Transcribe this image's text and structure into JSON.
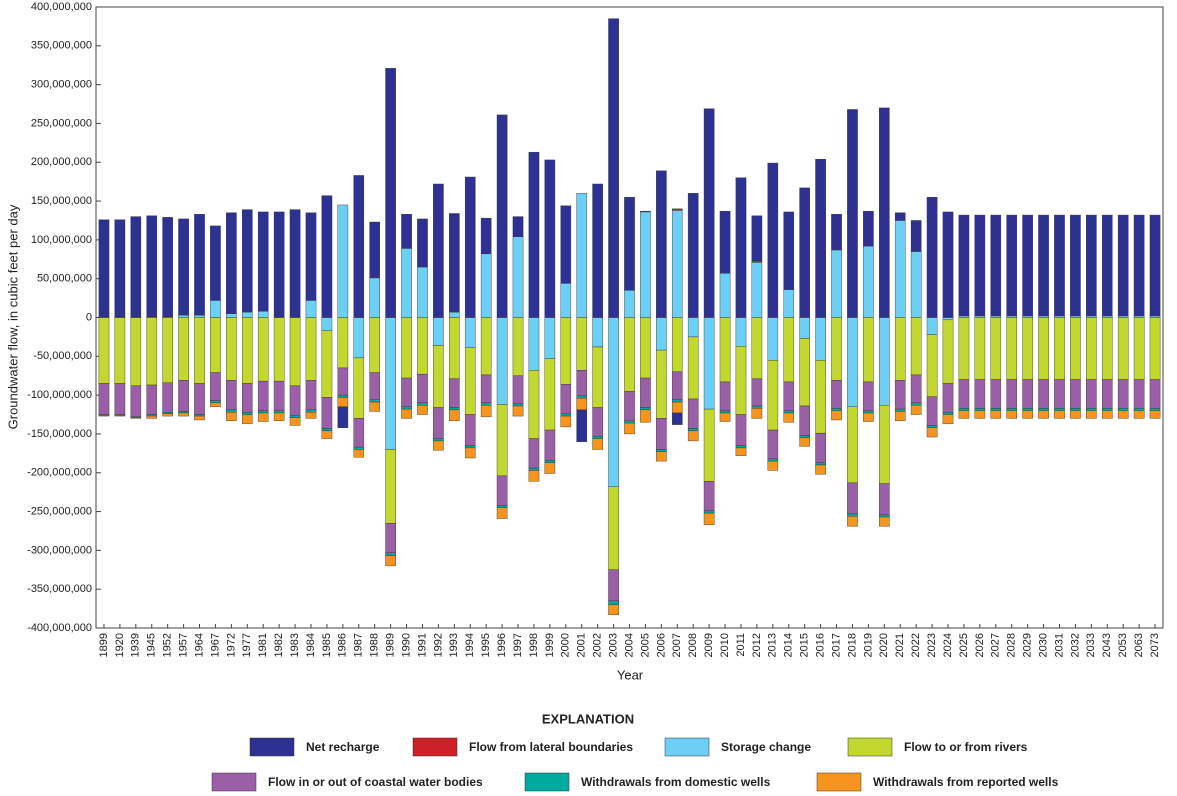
{
  "chart_data": {
    "type": "bar",
    "stacked": true,
    "x_label": "Year",
    "y_label": "Groundwater flow, in cubic feet per day",
    "legend_title": "EXPLANATION",
    "categories": [
      "1899",
      "1920",
      "1939",
      "1945",
      "1952",
      "1957",
      "1964",
      "1967",
      "1972",
      "1977",
      "1981",
      "1982",
      "1983",
      "1984",
      "1985",
      "1986",
      "1987",
      "1988",
      "1989",
      "1990",
      "1991",
      "1992",
      "1993",
      "1994",
      "1995",
      "1996",
      "1997",
      "1998",
      "1999",
      "2000",
      "2001",
      "2002",
      "2003",
      "2004",
      "2005",
      "2006",
      "2007",
      "2008",
      "2009",
      "2010",
      "2011",
      "2012",
      "2013",
      "2014",
      "2015",
      "2016",
      "2017",
      "2018",
      "2019",
      "2020",
      "2021",
      "2022",
      "2023",
      "2024",
      "2025",
      "2026",
      "2027",
      "2028",
      "2029",
      "2030",
      "2031",
      "2032",
      "2033",
      "2043",
      "2053",
      "2063",
      "2073"
    ],
    "ylim": [
      -400000000.0,
      400000000.0
    ],
    "yticks": [
      {
        "value": -400000000.0,
        "label": "-400,000,000"
      },
      {
        "value": -350000000.0,
        "label": "-350,000,000"
      },
      {
        "value": -300000000.0,
        "label": "-300,000,000"
      },
      {
        "value": -250000000.0,
        "label": "-250,000,000"
      },
      {
        "value": -200000000.0,
        "label": "-200,000,000"
      },
      {
        "value": -150000000.0,
        "label": "-150,000,000"
      },
      {
        "value": -100000000.0,
        "label": "-100,000,000"
      },
      {
        "value": -50000000.0,
        "label": "-50,000,000"
      },
      0,
      {
        "value": 50000000.0,
        "label": "50,000,000"
      },
      {
        "value": 100000000.0,
        "label": "100,000,000"
      },
      {
        "value": 150000000.0,
        "label": "150,000,000"
      },
      {
        "value": 200000000.0,
        "label": "200,000,000"
      },
      {
        "value": 250000000.0,
        "label": "250,000,000"
      },
      {
        "value": 300000000.0,
        "label": "300,000,000"
      },
      {
        "value": 350000000.0,
        "label": "350,000,000"
      },
      {
        "value": 400000000.0,
        "label": "400,000,000"
      }
    ],
    "series": [
      {
        "name": "Net recharge",
        "color": "#2e3192",
        "values": [
          126000000.0,
          126000000.0,
          130000000.0,
          130000000.0,
          128000000.0,
          124000000.0,
          130000000.0,
          96000000.0,
          130000000.0,
          132000000.0,
          128000000.0,
          136000000.0,
          139000000.0,
          113000000.0,
          157000000.0,
          -27000000.0,
          183000000.0,
          72000000.0,
          321000000.0,
          44000000.0,
          62000000.0,
          172000000.0,
          127000000.0,
          181000000.0,
          46000000.0,
          261000000.0,
          26000000.0,
          213000000.0,
          203000000.0,
          100000000.0,
          -41000000.0,
          172000000.0,
          385000000.0,
          120000000.0,
          1000000.0,
          189000000.0,
          -15000000.0,
          160000000.0,
          269000000.0,
          80000000.0,
          180000000.0,
          58000000.0,
          199000000.0,
          100000000.0,
          167000000.0,
          204000000.0,
          46000000.0,
          268000000.0,
          45000000.0,
          270000000.0,
          10000000.0,
          40000000.0,
          155000000.0,
          136000000.0,
          130000000.0,
          130000000.0,
          130000000.0,
          130000000.0,
          130000000.0,
          130000000.0,
          130000000.0,
          130000000.0,
          130000000.0,
          130000000.0,
          130000000.0,
          130000000.0,
          130000000.0
        ]
      },
      {
        "name": "Flow from lateral boundaries",
        "color": "#cc1f26",
        "values": [
          0,
          0,
          0,
          1000000.0,
          1000000.0,
          0,
          0,
          0,
          0,
          0,
          0,
          0,
          0,
          0,
          0,
          0,
          0,
          0,
          0,
          0,
          0,
          0,
          0,
          0,
          0,
          0,
          0,
          0,
          0,
          0,
          0,
          0,
          0,
          0,
          0,
          0,
          2000000.0,
          0,
          0,
          0,
          0,
          2000000.0,
          0,
          0,
          0,
          0,
          0,
          0,
          0,
          0,
          0,
          0,
          0,
          0,
          0,
          0,
          0,
          0,
          0,
          0,
          0,
          0,
          0,
          0,
          0,
          0,
          0
        ]
      },
      {
        "name": "Storage change",
        "color": "#6ccff6",
        "values": [
          0,
          0,
          0,
          0,
          0,
          3000000.0,
          3000000.0,
          22000000.0,
          5000000.0,
          7000000.0,
          8000000.0,
          0,
          0,
          22000000.0,
          -17000000.0,
          145000000.0,
          -52000000.0,
          51000000.0,
          -170000000.0,
          89000000.0,
          65000000.0,
          -36000000.0,
          7000000.0,
          -39000000.0,
          82000000.0,
          -112000000.0,
          104000000.0,
          -68000000.0,
          -53000000.0,
          44000000.0,
          160000000.0,
          -38000000.0,
          -218000000.0,
          35000000.0,
          136000000.0,
          -42000000.0,
          138000000.0,
          -25000000.0,
          -118000000.0,
          57000000.0,
          -37000000.0,
          71000000.0,
          -55000000.0,
          36000000.0,
          -27000000.0,
          -55000000.0,
          87000000.0,
          -115000000.0,
          92000000.0,
          -113000000.0,
          125000000.0,
          85000000.0,
          -22000000.0,
          -3000000.0,
          2000000.0,
          2000000.0,
          2000000.0,
          2000000.0,
          2000000.0,
          2000000.0,
          2000000.0,
          2000000.0,
          2000000.0,
          2000000.0,
          2000000.0,
          2000000.0,
          2000000.0
        ]
      },
      {
        "name": "Flow to or from rivers",
        "color": "#c3d82e",
        "values": [
          -85000000.0,
          -85000000.0,
          -88000000.0,
          -87000000.0,
          -84000000.0,
          -81000000.0,
          -85000000.0,
          -71000000.0,
          -81000000.0,
          -85000000.0,
          -82000000.0,
          -82000000.0,
          -88000000.0,
          -81000000.0,
          -86000000.0,
          -65000000.0,
          -78000000.0,
          -71000000.0,
          -95000000.0,
          -78000000.0,
          -73000000.0,
          -80000000.0,
          -79000000.0,
          -86000000.0,
          -74000000.0,
          -92000000.0,
          -75000000.0,
          -88000000.0,
          -92000000.0,
          -86000000.0,
          -68000000.0,
          -78000000.0,
          -107000000.0,
          -95000000.0,
          -78000000.0,
          -88000000.0,
          -70000000.0,
          -80000000.0,
          -93000000.0,
          -83000000.0,
          -88000000.0,
          -79000000.0,
          -90000000.0,
          -83000000.0,
          -87000000.0,
          -94000000.0,
          -81000000.0,
          -98000000.0,
          -83000000.0,
          -101000000.0,
          -81000000.0,
          -74000000.0,
          -80000000.0,
          -82000000.0,
          -80000000.0,
          -80000000.0,
          -80000000.0,
          -80000000.0,
          -80000000.0,
          -80000000.0,
          -80000000.0,
          -80000000.0,
          -80000000.0,
          -80000000.0,
          -80000000.0,
          -80000000.0,
          -80000000.0
        ]
      },
      {
        "name": "Flow in or out of coastal water bodies",
        "color": "#9b5fa8",
        "values": [
          -40000000.0,
          -40000000.0,
          -40000000.0,
          -38000000.0,
          -38000000.0,
          -40000000.0,
          -40000000.0,
          -36000000.0,
          -38000000.0,
          -37000000.0,
          -38000000.0,
          -38000000.0,
          -38000000.0,
          -38000000.0,
          -40000000.0,
          -35000000.0,
          -37000000.0,
          -35000000.0,
          -38000000.0,
          -37000000.0,
          -37000000.0,
          -40000000.0,
          -37000000.0,
          -40000000.0,
          -36000000.0,
          -38000000.0,
          -36000000.0,
          -38000000.0,
          -39000000.0,
          -38000000.0,
          -33000000.0,
          -37000000.0,
          -40000000.0,
          -38000000.0,
          -38000000.0,
          -40000000.0,
          -36000000.0,
          -38000000.0,
          -38000000.0,
          -37000000.0,
          -40000000.0,
          -35000000.0,
          -37000000.0,
          -37000000.0,
          -38000000.0,
          -38000000.0,
          -36000000.0,
          -40000000.0,
          -37000000.0,
          -40000000.0,
          -37000000.0,
          -36000000.0,
          -37000000.0,
          -37000000.0,
          -37000000.0,
          -37000000.0,
          -37000000.0,
          -37000000.0,
          -37000000.0,
          -37000000.0,
          -37000000.0,
          -37000000.0,
          -37000000.0,
          -37000000.0,
          -37000000.0,
          -37000000.0,
          -37000000.0
        ]
      },
      {
        "name": "Withdrawals from domestic wells",
        "color": "#00a99d",
        "values": [
          -1000000.0,
          -1000000.0,
          -1000000.0,
          -2000000.0,
          -2000000.0,
          -2000000.0,
          -2000000.0,
          -3000000.0,
          -3000000.0,
          -3000000.0,
          -3000000.0,
          -3000000.0,
          -3000000.0,
          -3000000.0,
          -3000000.0,
          -3000000.0,
          -3000000.0,
          -3000000.0,
          -4000000.0,
          -3000000.0,
          -3000000.0,
          -3000000.0,
          -3000000.0,
          -3000000.0,
          -3000000.0,
          -3000000.0,
          -3000000.0,
          -3000000.0,
          -3000000.0,
          -3000000.0,
          -3000000.0,
          -3000000.0,
          -5000000.0,
          -3000000.0,
          -3000000.0,
          -3000000.0,
          -3000000.0,
          -3000000.0,
          -3000000.0,
          -3000000.0,
          -3000000.0,
          -3000000.0,
          -3000000.0,
          -3000000.0,
          -3000000.0,
          -3000000.0,
          -3000000.0,
          -3000000.0,
          -3000000.0,
          -3000000.0,
          -3000000.0,
          -3000000.0,
          -3000000.0,
          -3000000.0,
          -3000000.0,
          -3000000.0,
          -3000000.0,
          -3000000.0,
          -3000000.0,
          -3000000.0,
          -3000000.0,
          -3000000.0,
          -3000000.0,
          -3000000.0,
          -3000000.0,
          -3000000.0,
          -3000000.0
        ]
      },
      {
        "name": "Withdrawals from reported wells",
        "color": "#f7941d",
        "values": [
          -1000000.0,
          -1000000.0,
          -1000000.0,
          -3000000.0,
          -3000000.0,
          -4000000.0,
          -5000000.0,
          -5000000.0,
          -11000000.0,
          -12000000.0,
          -11000000.0,
          -10000000.0,
          -10000000.0,
          -8000000.0,
          -10000000.0,
          -12000000.0,
          -10000000.0,
          -12000000.0,
          -13000000.0,
          -12000000.0,
          -12000000.0,
          -12000000.0,
          -14000000.0,
          -13000000.0,
          -15000000.0,
          -14000000.0,
          -13000000.0,
          -14000000.0,
          -14000000.0,
          -14000000.0,
          -15000000.0,
          -14000000.0,
          -13000000.0,
          -14000000.0,
          -16000000.0,
          -12000000.0,
          -14000000.0,
          -13000000.0,
          -15000000.0,
          -11000000.0,
          -10000000.0,
          -13000000.0,
          -12000000.0,
          -12000000.0,
          -11000000.0,
          -12000000.0,
          -12000000.0,
          -13000000.0,
          -11000000.0,
          -12000000.0,
          -12000000.0,
          -12000000.0,
          -12000000.0,
          -12000000.0,
          -10000000.0,
          -10000000.0,
          -10000000.0,
          -10000000.0,
          -10000000.0,
          -10000000.0,
          -10000000.0,
          -10000000.0,
          -10000000.0,
          -10000000.0,
          -10000000.0,
          -10000000.0,
          -10000000.0
        ]
      }
    ]
  }
}
